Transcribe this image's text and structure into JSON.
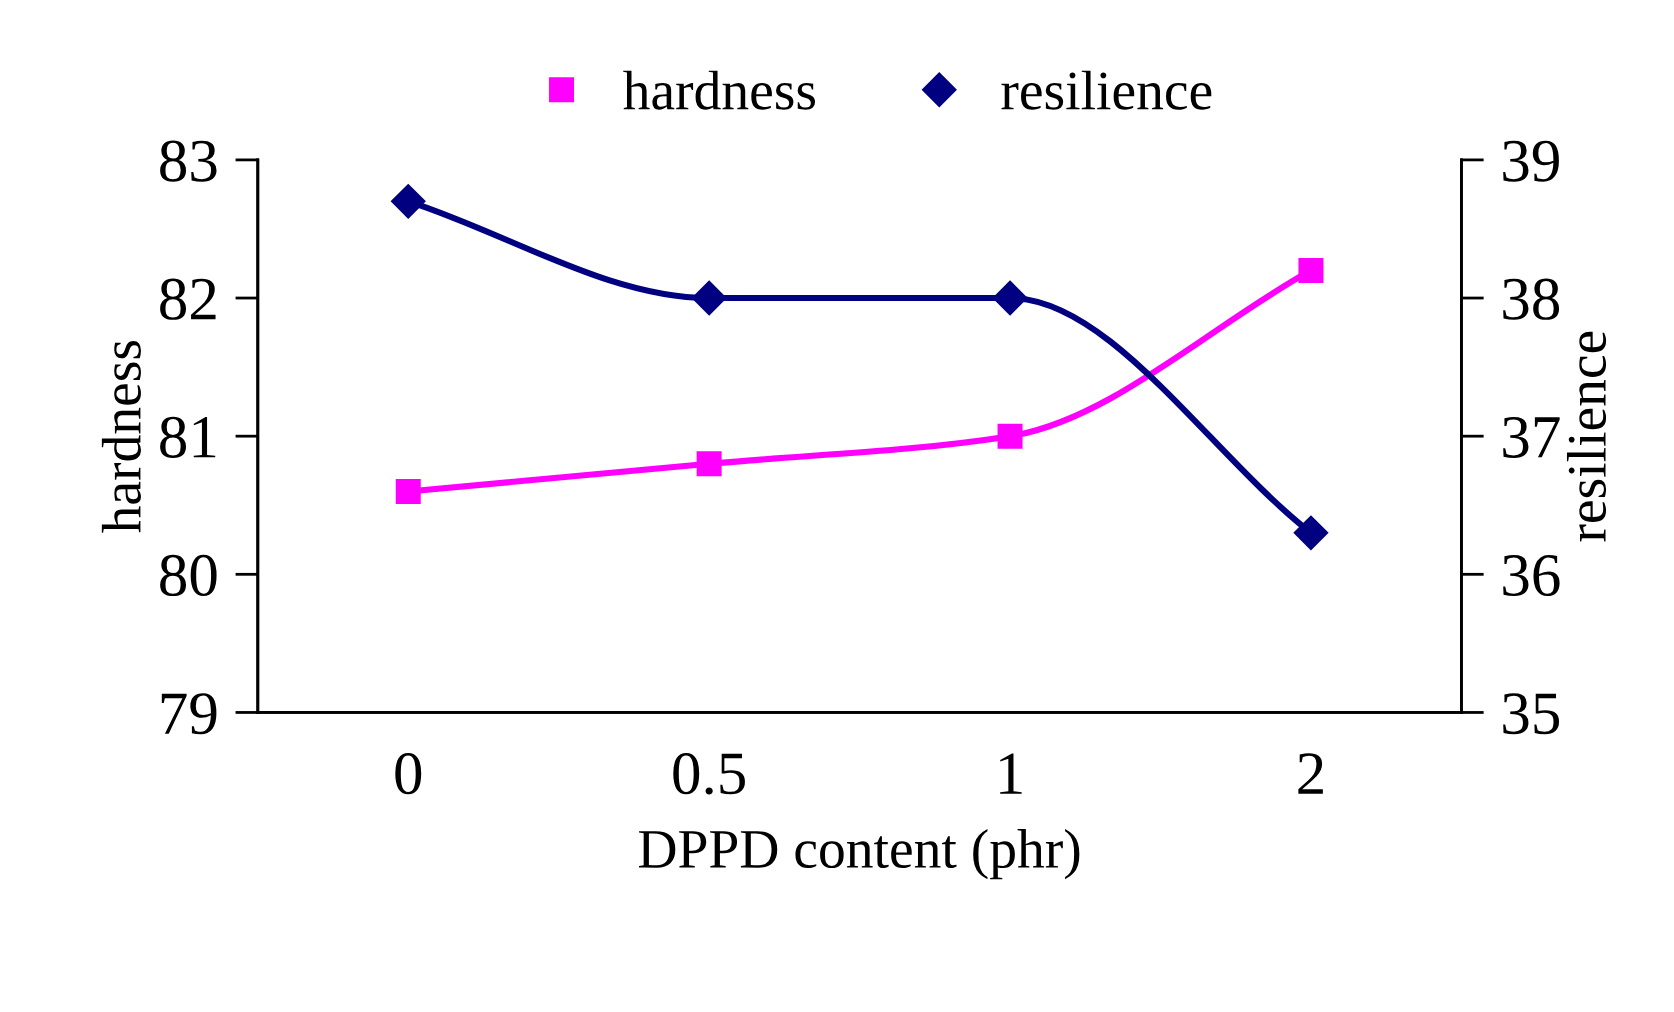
{
  "chart_data": {
    "type": "line",
    "xlabel": "DPPD content (phr)",
    "ylabel": "hardness",
    "y2label": "resilience",
    "categories": [
      "0",
      "0.5",
      "1",
      "2"
    ],
    "series": [
      {
        "name": "hardness",
        "color": "#ff00ff",
        "values": [
          80.6,
          80.8,
          81.0,
          82.2
        ],
        "marker": "square"
      },
      {
        "name": "resilience",
        "color": "#000080",
        "values": [
          38.7,
          38.0,
          38.0,
          36.3
        ],
        "marker": "diamond",
        "axis": "y2"
      }
    ],
    "ylim": [
      79,
      83
    ],
    "yticks": [
      79,
      80,
      81,
      82,
      83
    ],
    "y2lim": [
      35,
      39
    ],
    "y2ticks": [
      35,
      36,
      37,
      38,
      39
    ],
    "grid": false,
    "legend": "top",
    "line_style": "solid"
  }
}
